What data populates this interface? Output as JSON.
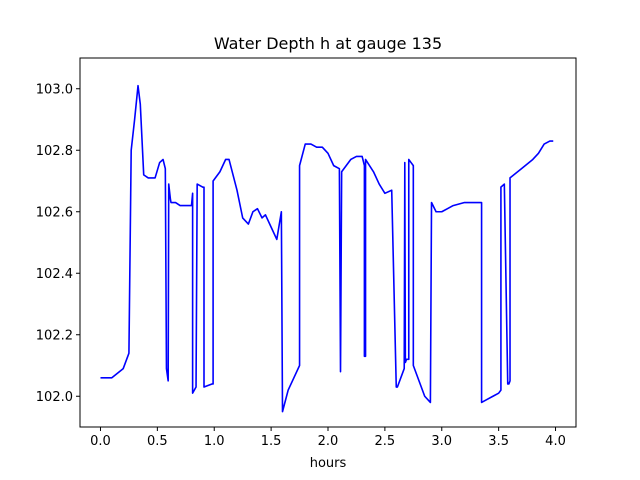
{
  "chart_data": {
    "type": "line",
    "title": "Water Depth h at gauge 135",
    "xlabel": "hours",
    "ylabel": "",
    "xlim": [
      -0.18,
      4.18
    ],
    "ylim": [
      101.9,
      103.1
    ],
    "x_ticks": [
      0.0,
      0.5,
      1.0,
      1.5,
      2.0,
      2.5,
      3.0,
      3.5,
      4.0
    ],
    "x_tick_labels": [
      "0.0",
      "0.5",
      "1.0",
      "1.5",
      "2.0",
      "2.5",
      "3.0",
      "3.5",
      "4.0"
    ],
    "y_ticks": [
      102.0,
      102.2,
      102.4,
      102.6,
      102.8,
      103.0
    ],
    "y_tick_labels": [
      "102.0",
      "102.2",
      "102.4",
      "102.6",
      "102.8",
      "103.0"
    ],
    "grid": false,
    "series": [
      {
        "color": "#0000ff",
        "x": [
          0.0,
          0.1,
          0.2,
          0.25,
          0.27,
          0.27,
          0.3,
          0.33,
          0.35,
          0.38,
          0.42,
          0.48,
          0.52,
          0.55,
          0.57,
          0.58,
          0.595,
          0.6,
          0.6,
          0.615,
          0.62,
          0.66,
          0.7,
          0.75,
          0.8,
          0.81,
          0.81,
          0.84,
          0.85,
          0.85,
          0.9,
          0.91,
          0.91,
          0.98,
          0.99,
          0.99,
          1.05,
          1.1,
          1.13,
          1.2,
          1.25,
          1.3,
          1.34,
          1.38,
          1.42,
          1.45,
          1.5,
          1.55,
          1.59,
          1.6,
          1.65,
          1.7,
          1.75,
          1.75,
          1.8,
          1.85,
          1.9,
          1.95,
          2.0,
          2.05,
          2.1,
          2.11,
          2.11,
          2.12,
          2.12,
          2.2,
          2.25,
          2.3,
          2.32,
          2.32,
          2.33,
          2.33,
          2.4,
          2.45,
          2.5,
          2.56,
          2.6,
          2.61,
          2.61,
          2.67,
          2.675,
          2.675,
          2.68,
          2.69,
          2.7,
          2.71,
          2.71,
          2.73,
          2.75,
          2.75,
          2.8,
          2.85,
          2.9,
          2.91,
          2.91,
          2.95,
          3.0,
          3.05,
          3.1,
          3.2,
          3.25,
          3.3,
          3.35,
          3.35,
          3.4,
          3.45,
          3.5,
          3.52,
          3.52,
          3.55,
          3.55,
          3.58,
          3.59,
          3.6,
          3.6,
          3.7,
          3.8,
          3.85,
          3.9,
          3.95,
          3.98
        ],
        "y": [
          102.06,
          102.06,
          102.09,
          102.14,
          102.8,
          102.8,
          102.9,
          103.01,
          102.95,
          102.72,
          102.71,
          102.71,
          102.76,
          102.77,
          102.74,
          102.09,
          102.05,
          102.69,
          102.69,
          102.64,
          102.63,
          102.63,
          102.62,
          102.62,
          102.62,
          102.66,
          102.01,
          102.03,
          102.69,
          102.69,
          102.68,
          102.68,
          102.03,
          102.04,
          102.04,
          102.7,
          102.73,
          102.77,
          102.77,
          102.67,
          102.58,
          102.56,
          102.6,
          102.61,
          102.58,
          102.59,
          102.55,
          102.51,
          102.6,
          101.95,
          102.02,
          102.06,
          102.1,
          102.75,
          102.82,
          102.82,
          102.81,
          102.81,
          102.79,
          102.75,
          102.74,
          102.08,
          102.08,
          102.73,
          102.73,
          102.77,
          102.78,
          102.78,
          102.75,
          102.13,
          102.13,
          102.77,
          102.73,
          102.69,
          102.66,
          102.67,
          102.03,
          102.03,
          102.03,
          102.09,
          102.75,
          102.76,
          102.11,
          102.12,
          102.12,
          102.12,
          102.77,
          102.76,
          102.75,
          102.1,
          102.05,
          102.0,
          101.98,
          102.63,
          102.63,
          102.6,
          102.6,
          102.61,
          102.62,
          102.63,
          102.63,
          102.63,
          102.63,
          101.98,
          101.99,
          102.0,
          102.01,
          102.02,
          102.68,
          102.69,
          102.69,
          102.04,
          102.04,
          102.05,
          102.71,
          102.74,
          102.77,
          102.79,
          102.82,
          102.83,
          102.83
        ]
      }
    ]
  }
}
